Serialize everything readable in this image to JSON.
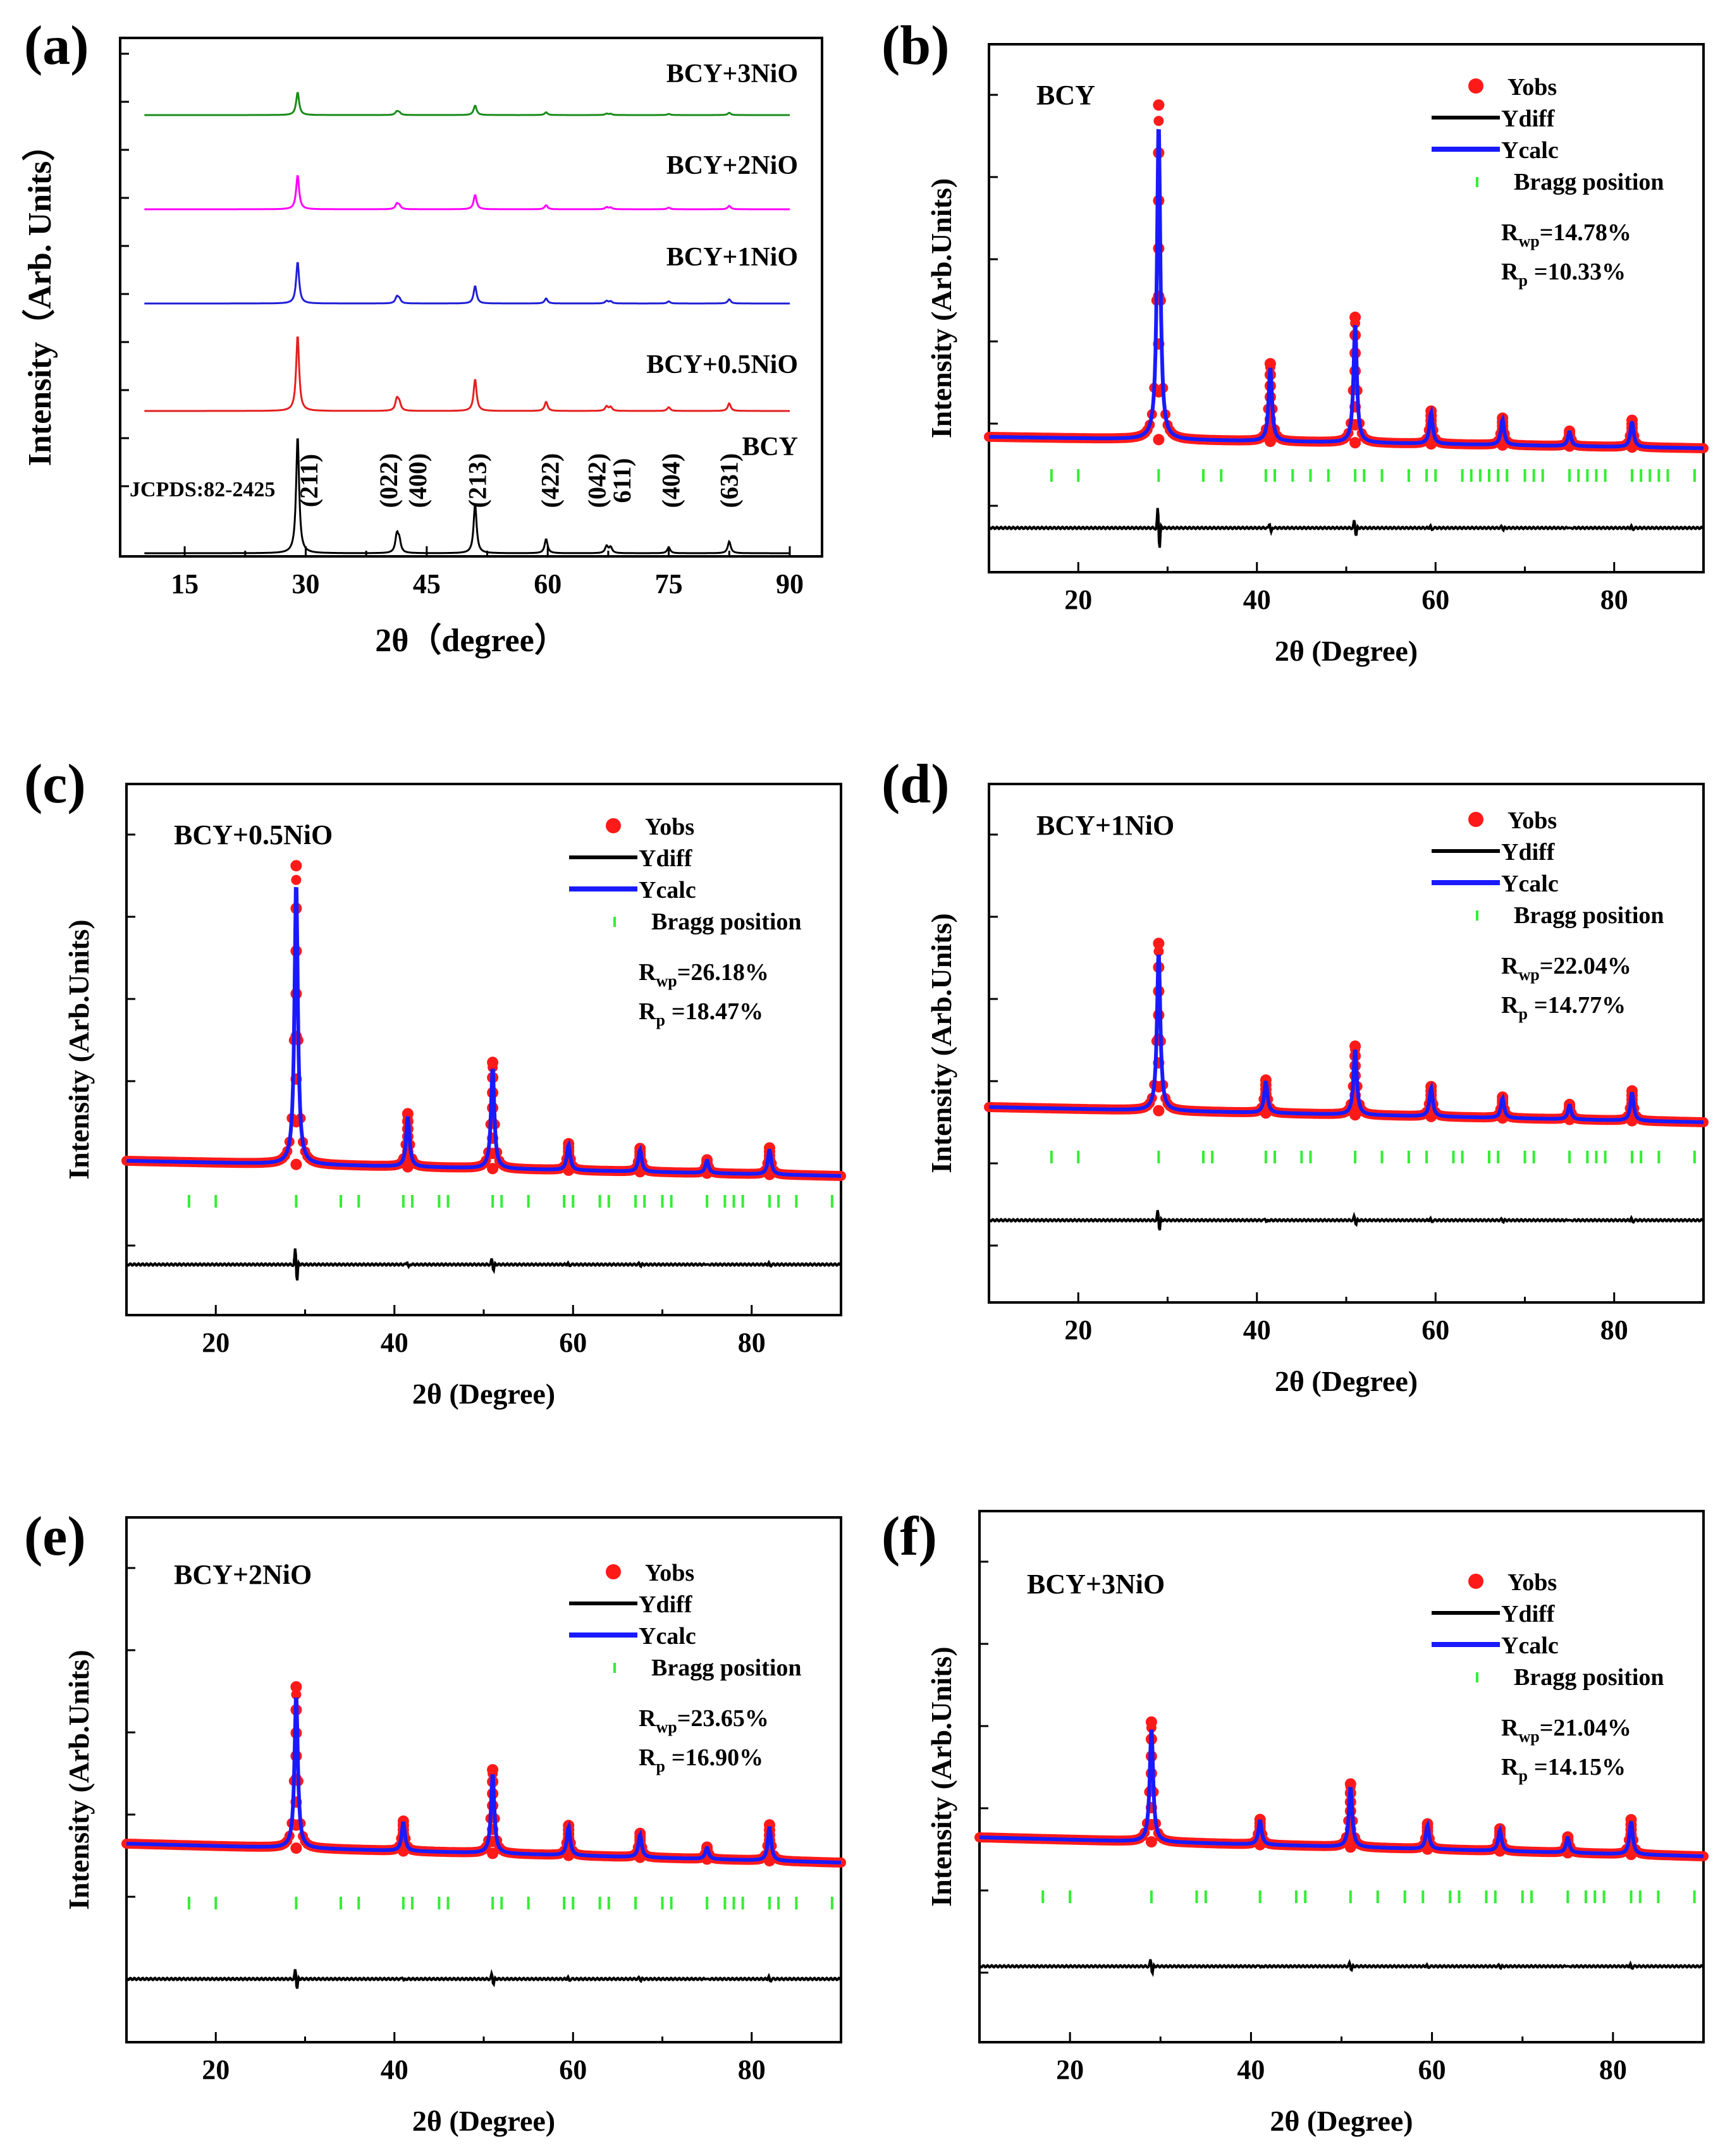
{
  "chart_data": [
    {
      "panel_label": "(a)",
      "type": "line",
      "xlabel": "2θ（degree）",
      "ylabel": "Intensity（Arb. Units）",
      "xlim": [
        7,
        94
      ],
      "xticks": [
        15,
        30,
        45,
        60,
        75,
        90
      ],
      "reference_label": "JCPDS:82-2425",
      "peak_positions": [
        29,
        41.3,
        41.6,
        51,
        59.8,
        67.3,
        67.8,
        75,
        82.5
      ],
      "peak_intensity_fraction": [
        1.0,
        0.15,
        0.1,
        0.42,
        0.12,
        0.06,
        0.05,
        0.05,
        0.1
      ],
      "series": [
        {
          "name": "BCY+3NiO",
          "color": "#1a8c1a",
          "peak_scale": 0.3
        },
        {
          "name": "BCY+2NiO",
          "color": "#ff00ff",
          "peak_scale": 0.45
        },
        {
          "name": "BCY+1NiO",
          "color": "#1f1fd6",
          "peak_scale": 0.55
        },
        {
          "name": "BCY+0.5NiO",
          "color": "#e51f1f",
          "peak_scale": 1.0
        },
        {
          "name": "BCY",
          "color": "#000000",
          "peak_scale": 1.55
        }
      ],
      "hkl_labels": [
        {
          "hkl": "(211)",
          "x": 30.5
        },
        {
          "hkl": "(022)",
          "x": 40.4
        },
        {
          "hkl": "(400)",
          "x": 44.0
        },
        {
          "hkl": "(213)",
          "x": 51.4
        },
        {
          "hkl": "(422)",
          "x": 60.4
        },
        {
          "hkl": "(042)",
          "x": 66.2
        },
        {
          "hkl": "611)",
          "x": 69.3
        },
        {
          "hkl": "(404)",
          "x": 75.4
        },
        {
          "hkl": "(631)",
          "x": 82.6
        }
      ]
    },
    {
      "panel_label": "(b)",
      "type": "line",
      "sample": "BCY",
      "xlabel": "2θ (Degree)",
      "ylabel": "Intensity (Arb.Units)",
      "xlim": [
        10,
        90
      ],
      "xticks": [
        20,
        40,
        60,
        80
      ],
      "legend": [
        "Yobs",
        "Ydiff",
        "Ycalc",
        "Bragg position"
      ],
      "Rwp": "=14.78%",
      "Rp": "=10.33%",
      "background_start": 1.0,
      "background_end": 0.85,
      "peak_positions": [
        29,
        41.5,
        51,
        59.5,
        67.5,
        75,
        82
      ],
      "peak_heights": [
        5.6,
        1.3,
        2.1,
        0.55,
        0.45,
        0.25,
        0.45
      ],
      "bragg_positions": [
        17,
        20,
        29,
        34,
        36,
        41,
        42,
        44,
        46,
        48,
        51,
        52,
        54,
        57,
        59,
        60,
        63,
        64,
        65,
        66,
        67,
        68,
        70,
        71,
        72,
        75,
        76,
        77,
        78,
        79,
        82,
        83,
        84,
        85,
        86,
        89
      ]
    },
    {
      "panel_label": "(c)",
      "type": "line",
      "sample": "BCY+0.5NiO",
      "xlabel": "2θ (Degree)",
      "ylabel": "Intensity (Arb.Units)",
      "xlim": [
        10,
        90
      ],
      "xticks": [
        20,
        40,
        60,
        80
      ],
      "legend": [
        "Yobs",
        "Ydiff",
        "Ycalc",
        "Bragg position"
      ],
      "Rwp": "=26.18%",
      "Rp": "=18.47%",
      "background_start": 1.0,
      "background_end": 0.8,
      "peak_positions": [
        29,
        41.5,
        51,
        59.5,
        67.5,
        75,
        82
      ],
      "peak_heights": [
        4.5,
        0.8,
        1.6,
        0.4,
        0.35,
        0.2,
        0.4
      ],
      "bragg_positions": [
        17,
        20,
        29,
        34,
        36,
        41,
        42,
        45,
        46,
        51,
        52,
        55,
        59,
        60,
        63,
        64,
        67,
        68,
        70,
        71,
        75,
        77,
        78,
        79,
        82,
        83,
        85,
        89
      ]
    },
    {
      "panel_label": "(d)",
      "type": "line",
      "sample": "BCY+1NiO",
      "xlabel": "2θ (Degree)",
      "ylabel": "Intensity (Arb.Units)",
      "xlim": [
        10,
        90
      ],
      "xticks": [
        20,
        40,
        60,
        80
      ],
      "legend": [
        "Yobs",
        "Ydiff",
        "Ycalc",
        "Bragg position"
      ],
      "Rwp": "=22.04%",
      "Rp": "=14.77%",
      "background_start": 1.0,
      "background_end": 0.8,
      "peak_positions": [
        29,
        41,
        51,
        59.5,
        67.5,
        75,
        82
      ],
      "peak_heights": [
        2.8,
        0.55,
        1.15,
        0.5,
        0.35,
        0.25,
        0.5
      ],
      "bragg_positions": [
        17,
        20,
        29,
        34,
        35,
        41,
        42,
        45,
        46,
        51,
        54,
        57,
        59,
        62,
        63,
        66,
        67,
        70,
        71,
        75,
        77,
        78,
        79,
        82,
        83,
        85,
        89
      ]
    },
    {
      "panel_label": "(e)",
      "type": "line",
      "sample": "BCY+2NiO",
      "xlabel": "2θ (Degree)",
      "ylabel": "Intensity (Arb.Units)",
      "xlim": [
        10,
        90
      ],
      "xticks": [
        20,
        40,
        60,
        80
      ],
      "legend": [
        "Yobs",
        "Ydiff",
        "Ycalc",
        "Bragg position"
      ],
      "Rwp": "=23.65%",
      "Rp": "=16.90%",
      "background_start": 1.0,
      "background_end": 0.75,
      "peak_positions": [
        29,
        41,
        51,
        59.5,
        67.5,
        75,
        82
      ],
      "peak_heights": [
        2.7,
        0.5,
        1.4,
        0.5,
        0.4,
        0.2,
        0.6
      ],
      "bragg_positions": [
        17,
        20,
        29,
        34,
        36,
        41,
        42,
        45,
        46,
        51,
        52,
        55,
        59,
        60,
        63,
        64,
        67,
        70,
        71,
        75,
        77,
        78,
        79,
        82,
        83,
        85,
        89
      ]
    },
    {
      "panel_label": "(f)",
      "type": "line",
      "sample": "BCY+3NiO",
      "xlabel": "2θ (Degree)",
      "ylabel": "Intensity (Arb.Units)",
      "xlim": [
        10,
        90
      ],
      "xticks": [
        20,
        40,
        60,
        80
      ],
      "legend": [
        "Yobs",
        "Ydiff",
        "Ycalc",
        "Bragg position"
      ],
      "Rwp": "=21.04%",
      "Rp": "=14.15%",
      "background_start": 1.0,
      "background_end": 0.75,
      "peak_positions": [
        29,
        41,
        51,
        59.5,
        67.5,
        75,
        82
      ],
      "peak_heights": [
        1.9,
        0.4,
        1.0,
        0.4,
        0.35,
        0.25,
        0.55
      ],
      "bragg_positions": [
        17,
        20,
        29,
        34,
        35,
        41,
        45,
        46,
        51,
        54,
        57,
        59,
        62,
        63,
        66,
        67,
        70,
        71,
        75,
        77,
        78,
        79,
        82,
        83,
        85,
        89
      ]
    }
  ],
  "colors": {
    "obs": "#ff1a1a",
    "calc": "#1a1aff",
    "diff": "#000000",
    "bragg": "#33ee33"
  }
}
